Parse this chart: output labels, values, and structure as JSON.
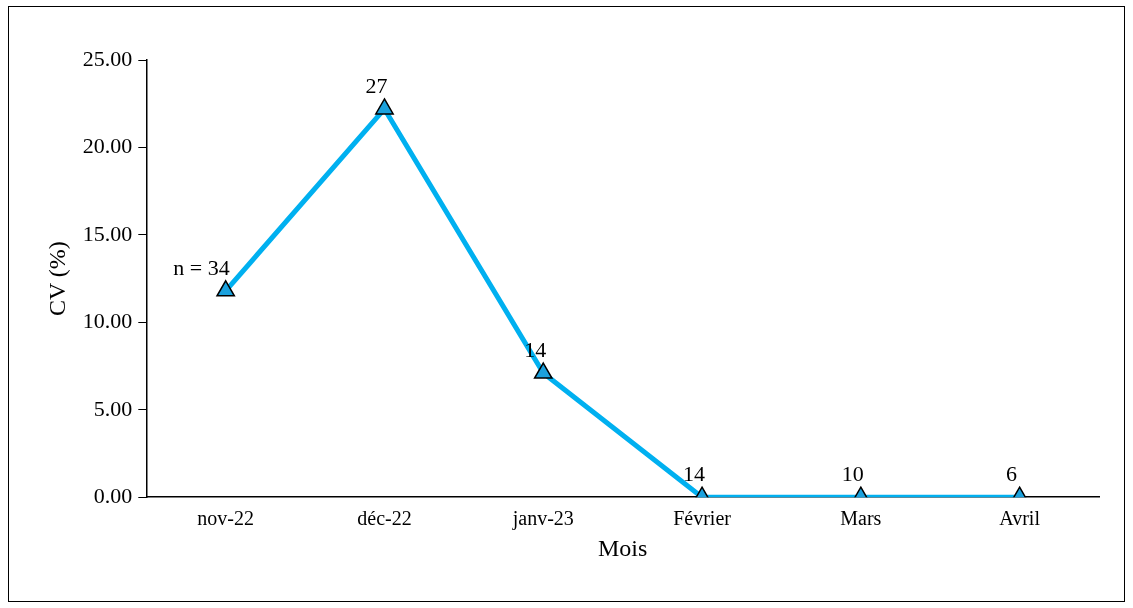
{
  "chart_data": {
    "type": "line",
    "xlabel": "Mois",
    "ylabel": "CV (%)",
    "categories": [
      "nov-22",
      "déc-22",
      "janv-23",
      "Février",
      "Mars",
      "Avril"
    ],
    "series": [
      {
        "color": "#00b0f0",
        "values": [
          11.8,
          22.2,
          7.1,
          0,
          0,
          0
        ]
      }
    ],
    "marker": "triangle",
    "line_style": "solid",
    "grid": false,
    "legend": false,
    "ylim": [
      0,
      25
    ],
    "yticks": [
      {
        "value": 0,
        "label": "0.00"
      },
      {
        "value": 5,
        "label": "5.00"
      },
      {
        "value": 10,
        "label": "10.00"
      },
      {
        "value": 15,
        "label": "15.00"
      },
      {
        "value": 20,
        "label": "20.00"
      },
      {
        "value": 25,
        "label": "25.00"
      }
    ],
    "annotations": [
      {
        "text": "n = 34",
        "x": "nov-22",
        "y": 11.8
      },
      {
        "text": "27",
        "x": "déc-22",
        "y": 22.2
      },
      {
        "text": "14",
        "x": "janv-23",
        "y": 7.1
      },
      {
        "text": "14",
        "x": "Février",
        "y": 0
      },
      {
        "text": "10",
        "x": "Mars",
        "y": 0
      },
      {
        "text": "6",
        "x": "Avril",
        "y": 0
      }
    ]
  }
}
